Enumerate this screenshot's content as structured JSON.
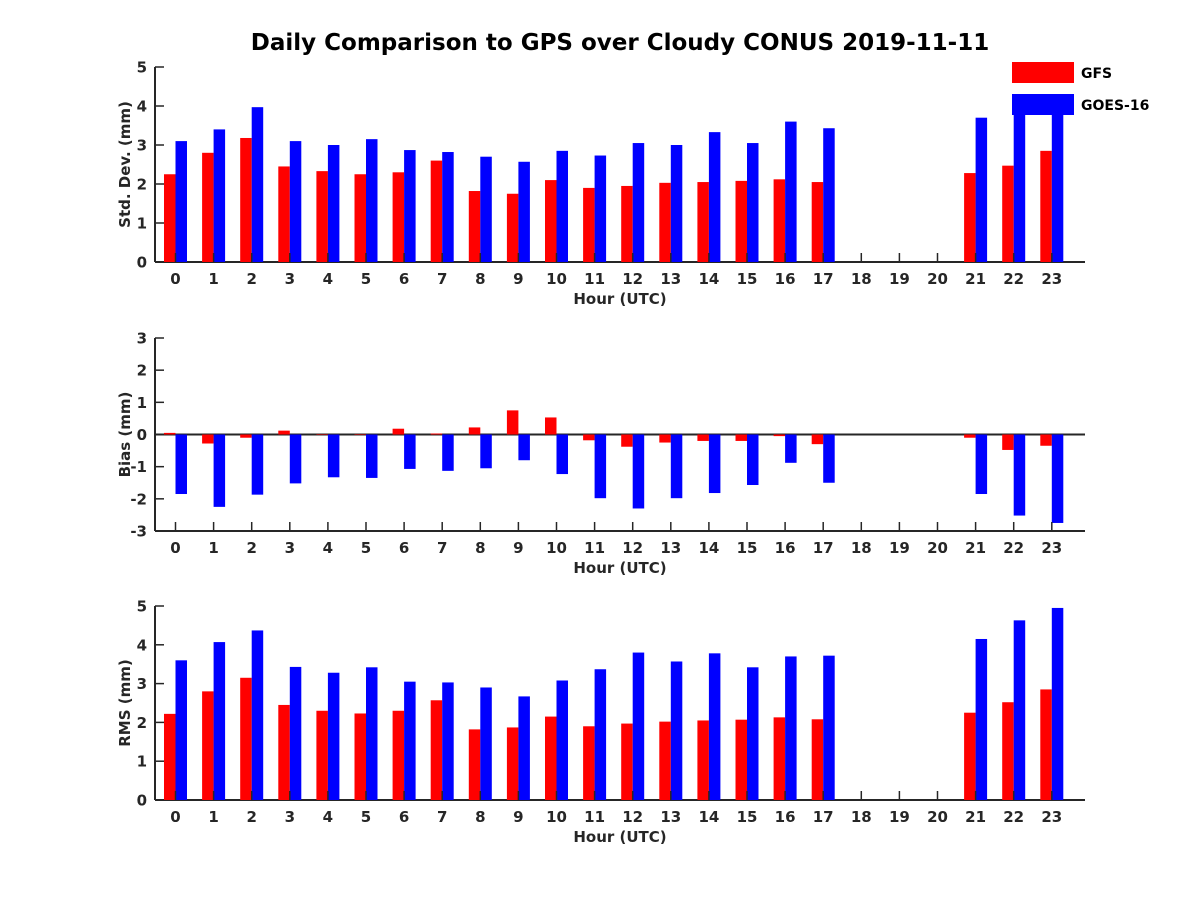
{
  "title": "Daily Comparison to GPS over Cloudy CONUS 2019-11-11",
  "legend": {
    "placement": "top-right",
    "items": [
      {
        "name": "GFS",
        "color": "#ff0000"
      },
      {
        "name": "GOES-16",
        "color": "#0000ff"
      }
    ]
  },
  "chart_data": [
    {
      "type": "bar",
      "xlabel": "Hour (UTC)",
      "ylabel": "Std. Dev. (mm)",
      "ylim": [
        0,
        5
      ],
      "yticks": [
        0,
        1,
        2,
        3,
        4,
        5
      ],
      "categories": [
        "0",
        "1",
        "2",
        "3",
        "4",
        "5",
        "6",
        "7",
        "8",
        "9",
        "10",
        "11",
        "12",
        "13",
        "14",
        "15",
        "16",
        "17",
        "18",
        "19",
        "20",
        "21",
        "22",
        "23"
      ],
      "series": [
        {
          "name": "GFS",
          "color": "#ff0000",
          "values": [
            2.25,
            2.8,
            3.18,
            2.45,
            2.33,
            2.25,
            2.3,
            2.6,
            1.82,
            1.75,
            2.1,
            1.9,
            1.95,
            2.03,
            2.05,
            2.08,
            2.12,
            2.05,
            null,
            null,
            null,
            2.28,
            2.47,
            2.85
          ]
        },
        {
          "name": "GOES-16",
          "color": "#0000ff",
          "values": [
            3.1,
            3.4,
            3.97,
            3.1,
            3.0,
            3.15,
            2.87,
            2.82,
            2.7,
            2.57,
            2.85,
            2.73,
            3.05,
            3.0,
            3.33,
            3.05,
            3.6,
            3.43,
            null,
            null,
            null,
            3.7,
            3.87,
            3.9
          ]
        }
      ]
    },
    {
      "type": "bar",
      "xlabel": "Hour (UTC)",
      "ylabel": "Bias (mm)",
      "ylim": [
        -3,
        3
      ],
      "yticks": [
        -3,
        -2,
        -1,
        0,
        1,
        2,
        3
      ],
      "categories": [
        "0",
        "1",
        "2",
        "3",
        "4",
        "5",
        "6",
        "7",
        "8",
        "9",
        "10",
        "11",
        "12",
        "13",
        "14",
        "15",
        "16",
        "17",
        "18",
        "19",
        "20",
        "21",
        "22",
        "23"
      ],
      "series": [
        {
          "name": "GFS",
          "color": "#ff0000",
          "values": [
            0.05,
            -0.28,
            -0.1,
            0.12,
            0.0,
            0.0,
            0.18,
            0.03,
            0.22,
            0.75,
            0.53,
            -0.18,
            -0.38,
            -0.25,
            -0.2,
            -0.2,
            -0.05,
            -0.3,
            null,
            null,
            null,
            -0.1,
            -0.48,
            -0.35
          ]
        },
        {
          "name": "GOES-16",
          "color": "#0000ff",
          "values": [
            -1.85,
            -2.25,
            -1.87,
            -1.52,
            -1.33,
            -1.35,
            -1.07,
            -1.13,
            -1.05,
            -0.8,
            -1.23,
            -1.98,
            -2.3,
            -1.98,
            -1.82,
            -1.57,
            -0.88,
            -1.5,
            null,
            null,
            null,
            -1.85,
            -2.52,
            -2.75
          ]
        }
      ]
    },
    {
      "type": "bar",
      "xlabel": "Hour (UTC)",
      "ylabel": "RMS (mm)",
      "ylim": [
        0,
        5
      ],
      "yticks": [
        0,
        1,
        2,
        3,
        4,
        5
      ],
      "categories": [
        "0",
        "1",
        "2",
        "3",
        "4",
        "5",
        "6",
        "7",
        "8",
        "9",
        "10",
        "11",
        "12",
        "13",
        "14",
        "15",
        "16",
        "17",
        "18",
        "19",
        "20",
        "21",
        "22",
        "23"
      ],
      "series": [
        {
          "name": "GFS",
          "color": "#ff0000",
          "values": [
            2.22,
            2.8,
            3.15,
            2.45,
            2.3,
            2.23,
            2.3,
            2.57,
            1.82,
            1.87,
            2.15,
            1.9,
            1.97,
            2.02,
            2.05,
            2.07,
            2.13,
            2.08,
            null,
            null,
            null,
            2.25,
            2.52,
            2.85
          ]
        },
        {
          "name": "GOES-16",
          "color": "#0000ff",
          "values": [
            3.6,
            4.07,
            4.37,
            3.43,
            3.28,
            3.42,
            3.05,
            3.03,
            2.9,
            2.67,
            3.08,
            3.37,
            3.8,
            3.57,
            3.78,
            3.42,
            3.7,
            3.72,
            null,
            null,
            null,
            4.15,
            4.63,
            4.95
          ]
        }
      ]
    }
  ]
}
